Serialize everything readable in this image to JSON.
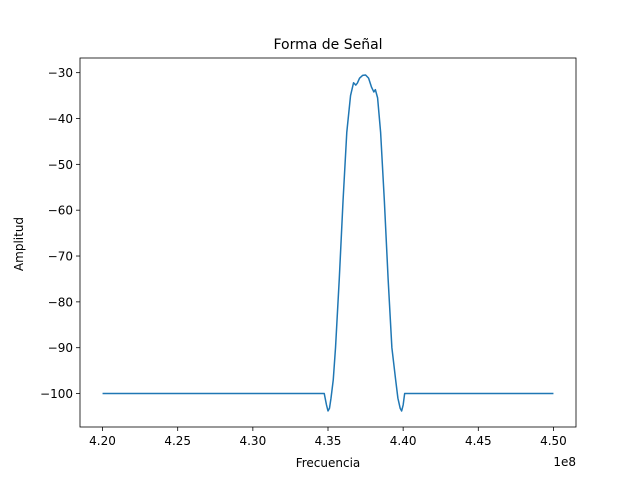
{
  "chart_data": {
    "type": "line",
    "title": "Forma de Señal",
    "xlabel": "Frecuencia",
    "ylabel": "Amplitud",
    "x_offset_label": "1e8",
    "xlim": [
      4.185,
      4.515
    ],
    "ylim": [
      -107.3,
      -26.8
    ],
    "x_ticks": [
      4.2,
      4.25,
      4.3,
      4.35,
      4.4,
      4.45,
      4.5
    ],
    "x_tick_labels": [
      "4.20",
      "4.25",
      "4.30",
      "4.35",
      "4.40",
      "4.45",
      "4.50"
    ],
    "y_ticks": [
      -30,
      -40,
      -50,
      -60,
      -70,
      -80,
      -90,
      -100
    ],
    "y_tick_labels": [
      "−30",
      "−40",
      "−50",
      "−60",
      "−70",
      "−80",
      "−90",
      "−100"
    ],
    "grid": false,
    "colors": {
      "line": "#1f77b4"
    },
    "series": [
      {
        "x": [
          4.2,
          4.3475,
          4.349,
          4.35,
          4.351,
          4.352,
          4.3535,
          4.355,
          4.3575,
          4.36,
          4.3625,
          4.365,
          4.367,
          4.3685,
          4.3695,
          4.371,
          4.373,
          4.375,
          4.377,
          4.379,
          4.3805,
          4.3815,
          4.383,
          4.385,
          4.3875,
          4.39,
          4.3925,
          4.395,
          4.3965,
          4.398,
          4.399,
          4.4,
          4.401,
          4.4025,
          4.5
        ],
        "y": [
          -100,
          -100,
          -102.5,
          -103.8,
          -103.2,
          -101,
          -97,
          -90,
          -75,
          -58,
          -43,
          -35,
          -32.2,
          -32.7,
          -32.3,
          -31.2,
          -30.6,
          -30.5,
          -31.2,
          -33.2,
          -34.2,
          -33.7,
          -35.5,
          -43,
          -58,
          -75,
          -90,
          -97,
          -101,
          -103.2,
          -103.8,
          -102.5,
          -100,
          -100,
          -100
        ]
      }
    ]
  }
}
